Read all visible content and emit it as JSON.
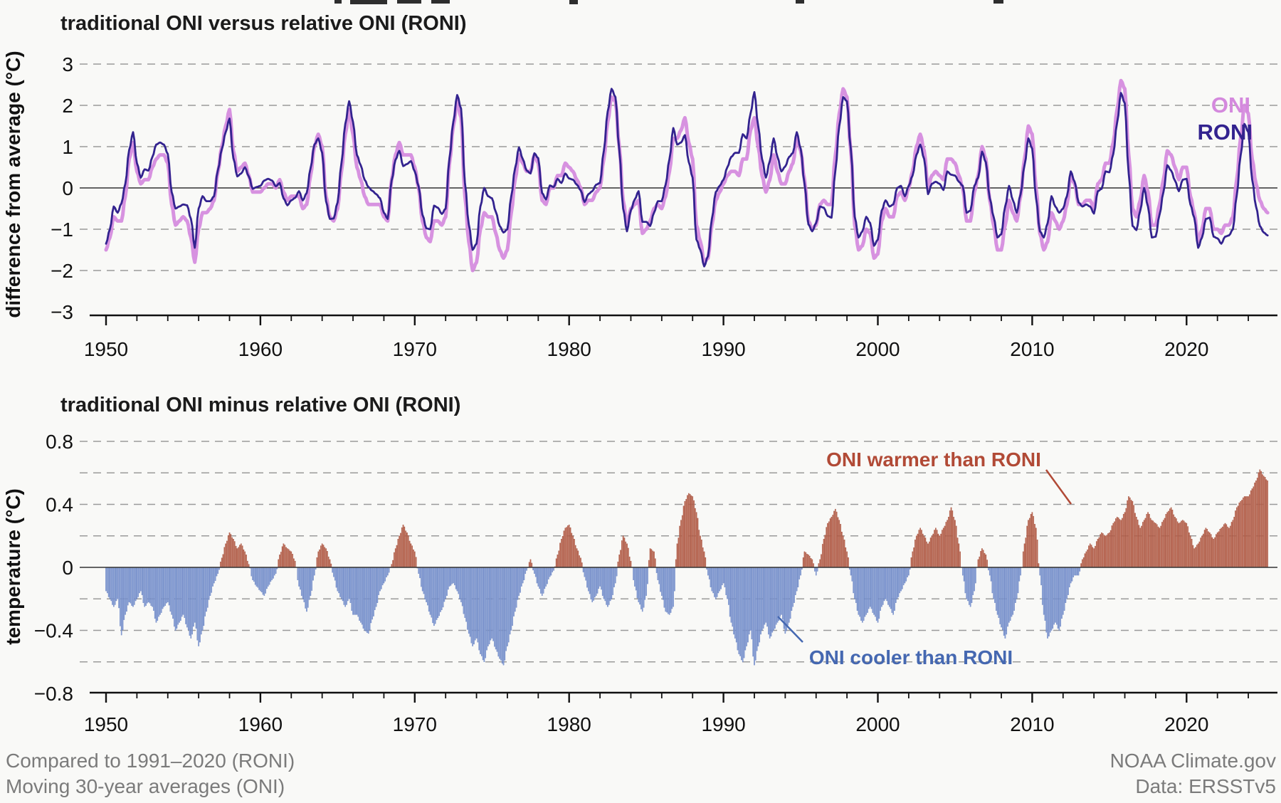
{
  "colors": {
    "oni": "#d489dd",
    "roni": "#33238f",
    "warm_bar": "#c06a53",
    "warm_bar_edge": "#9e4c3a",
    "cool_bar": "#8aa3d8",
    "cool_bar_edge": "#5d77bb",
    "warm_text": "#b14a36",
    "cool_text": "#4568b1",
    "grid": "#9a9a9a",
    "axis": "#111111",
    "zero_line": "#333333",
    "footer_text": "#7b7b7b"
  },
  "footer": {
    "left_line1": "Compared to 1991–2020 (RONI)",
    "left_line2": "Moving 30-year averages (ONI)",
    "right_line1": "NOAA Climate.gov",
    "right_line2": "Data: ERSSTv5"
  },
  "chart_data": [
    {
      "type": "line",
      "title": "traditional ONI versus relative ONI (RONI)",
      "xlabel": "",
      "ylabel": "difference from average (°C)",
      "x_start": 1950.0,
      "x_step_years": 0.25,
      "xlim": [
        1949,
        2026
      ],
      "ylim": [
        -3,
        3
      ],
      "yticks": [
        3,
        2,
        1,
        0,
        -1,
        -2,
        -3
      ],
      "xticks": [
        1950,
        1960,
        1970,
        1980,
        1990,
        2000,
        2010,
        2020
      ],
      "minor_xtick_interval_years": 2,
      "grid": "horizontal dashed",
      "legend_position": "inline upper right",
      "legend": {
        "oni_label": "ONI",
        "roni_label": "RONI"
      },
      "series": [
        {
          "name": "ONI",
          "color": "#d489dd",
          "values": [
            -1.5,
            -1.2,
            -0.7,
            -0.8,
            -0.8,
            -0.2,
            0.7,
            1.1,
            0.4,
            0.1,
            0.2,
            0.2,
            0.5,
            0.7,
            0.8,
            0.8,
            0.6,
            -0.4,
            -0.9,
            -0.8,
            -0.7,
            -0.8,
            -1.2,
            -1.8,
            -1.0,
            -0.6,
            -0.6,
            -0.5,
            -0.3,
            0.4,
            1.0,
            1.5,
            1.9,
            0.9,
            0.4,
            0.5,
            0.6,
            0.3,
            -0.1,
            -0.1,
            -0.1,
            0.0,
            0.1,
            0.1,
            0.0,
            0.2,
            -0.1,
            -0.3,
            -0.2,
            -0.2,
            -0.2,
            -0.5,
            -0.4,
            0.3,
            1.0,
            1.3,
            1.0,
            -0.2,
            -0.7,
            -0.8,
            -0.5,
            0.4,
            1.3,
            1.9,
            1.3,
            0.5,
            0.2,
            -0.2,
            -0.4,
            -0.4,
            -0.4,
            -0.4,
            -0.7,
            -0.8,
            0.2,
            0.8,
            1.1,
            0.8,
            0.8,
            0.8,
            0.5,
            0.0,
            -0.8,
            -1.2,
            -1.3,
            -0.8,
            -0.8,
            -0.9,
            -0.7,
            0.6,
            1.5,
            2.1,
            1.7,
            -0.2,
            -1.3,
            -2.0,
            -1.8,
            -1.0,
            -0.6,
            -0.7,
            -0.7,
            -1.1,
            -1.5,
            -1.7,
            -1.5,
            -0.6,
            0.2,
            0.8,
            0.6,
            0.4,
            0.4,
            0.8,
            0.6,
            -0.3,
            -0.4,
            0.0,
            0.0,
            0.3,
            0.3,
            0.6,
            0.5,
            0.4,
            0.2,
            0.0,
            -0.4,
            -0.3,
            -0.3,
            -0.1,
            0.0,
            0.7,
            1.6,
            2.2,
            2.1,
            1.0,
            -0.3,
            -0.9,
            -0.5,
            -0.4,
            -0.3,
            -1.1,
            -1.0,
            -0.8,
            -0.5,
            -0.4,
            -0.5,
            -0.2,
            0.4,
            1.2,
            1.2,
            1.4,
            1.7,
            1.1,
            0.7,
            -0.9,
            -1.3,
            -1.8,
            -1.7,
            -0.9,
            -0.3,
            -0.1,
            0.1,
            0.3,
            0.4,
            0.4,
            0.3,
            0.7,
            0.7,
            1.4,
            1.7,
            1.0,
            0.3,
            -0.1,
            0.2,
            0.8,
            0.4,
            0.1,
            0.1,
            0.4,
            0.6,
            1.2,
            0.9,
            0.2,
            -0.8,
            -1.0,
            -0.9,
            -0.4,
            -0.3,
            -0.4,
            -0.4,
            0.8,
            1.8,
            2.4,
            2.2,
            0.9,
            -0.9,
            -1.5,
            -1.4,
            -1.0,
            -1.1,
            -1.7,
            -1.6,
            -0.8,
            -0.5,
            -0.7,
            -0.7,
            -0.2,
            -0.1,
            -0.3,
            0.0,
            0.4,
            1.0,
            1.3,
            0.9,
            0.0,
            0.3,
            0.4,
            0.3,
            0.2,
            0.7,
            0.7,
            0.6,
            0.3,
            0.0,
            -0.8,
            -0.8,
            -0.1,
            0.3,
            1.0,
            0.7,
            -0.3,
            -0.9,
            -1.5,
            -1.5,
            -0.9,
            -0.3,
            -0.6,
            -0.8,
            -0.2,
            0.7,
            1.5,
            1.3,
            0.0,
            -1.1,
            -1.5,
            -1.3,
            -0.6,
            -0.8,
            -1.0,
            -0.8,
            -0.4,
            0.3,
            0.1,
            -0.4,
            -0.4,
            -0.3,
            -0.3,
            -0.5,
            0.1,
            0.2,
            0.6,
            0.6,
            1.1,
            1.9,
            2.6,
            2.4,
            0.8,
            -0.5,
            -0.7,
            -0.3,
            0.3,
            -0.1,
            -0.9,
            -0.9,
            -0.4,
            0.2,
            0.9,
            0.8,
            0.5,
            0.2,
            0.5,
            0.5,
            -0.2,
            -0.6,
            -1.3,
            -1.0,
            -0.5,
            -0.5,
            -1.0,
            -1.0,
            -1.1,
            -0.9,
            -0.9,
            -0.7,
            0.2,
            1.2,
            2.0,
            1.8,
            0.7,
            0.1,
            -0.3,
            -0.5,
            -0.6
          ]
        },
        {
          "name": "RONI",
          "color": "#33238f",
          "derivation": "RONI[i] = ONI[i] minus diff[i], where diff is the 'traditional ONI minus relative ONI' series of the bottom bar chart"
        }
      ]
    },
    {
      "type": "bar",
      "title": "traditional ONI minus relative ONI (RONI)",
      "xlabel": "",
      "ylabel": "temperature (°C)",
      "x_start": 1950.0,
      "x_step_years": 0.25,
      "xlim": [
        1949,
        2026
      ],
      "ylim": [
        -0.8,
        0.8
      ],
      "yticks": [
        0.8,
        0.4,
        0,
        -0.4,
        -0.8
      ],
      "minor_ytick_interval": 0.2,
      "xticks": [
        1950,
        1960,
        1970,
        1980,
        1990,
        2000,
        2010,
        2020
      ],
      "minor_xtick_interval_years": 2,
      "grid": "horizontal dashed",
      "positive_color": "#c06a53",
      "negative_color": "#8aa3d8",
      "annotations": {
        "positive_label": "ONI warmer than RONI",
        "negative_label": "ONI cooler than RONI"
      },
      "values": [
        -0.15,
        -0.2,
        -0.25,
        -0.2,
        -0.43,
        -0.3,
        -0.22,
        -0.25,
        -0.2,
        -0.15,
        -0.25,
        -0.22,
        -0.25,
        -0.35,
        -0.3,
        -0.25,
        -0.22,
        -0.3,
        -0.4,
        -0.35,
        -0.3,
        -0.38,
        -0.45,
        -0.35,
        -0.5,
        -0.4,
        -0.28,
        -0.18,
        -0.1,
        -0.04,
        0.06,
        0.15,
        0.22,
        0.18,
        0.12,
        0.15,
        0.1,
        0.02,
        -0.08,
        -0.12,
        -0.15,
        -0.18,
        -0.12,
        -0.08,
        -0.04,
        0.08,
        0.15,
        0.12,
        0.1,
        0.04,
        -0.12,
        -0.2,
        -0.28,
        -0.18,
        -0.05,
        0.1,
        0.15,
        0.12,
        0.05,
        -0.06,
        -0.15,
        -0.2,
        -0.25,
        -0.2,
        -0.3,
        -0.3,
        -0.35,
        -0.4,
        -0.42,
        -0.33,
        -0.25,
        -0.15,
        -0.1,
        -0.05,
        0.02,
        0.12,
        0.2,
        0.27,
        0.22,
        0.15,
        0.1,
        -0.04,
        -0.15,
        -0.22,
        -0.3,
        -0.37,
        -0.32,
        -0.27,
        -0.2,
        -0.12,
        -0.1,
        -0.15,
        -0.22,
        -0.32,
        -0.42,
        -0.5,
        -0.45,
        -0.55,
        -0.6,
        -0.5,
        -0.45,
        -0.52,
        -0.58,
        -0.62,
        -0.5,
        -0.4,
        -0.28,
        -0.18,
        -0.1,
        -0.02,
        0.05,
        -0.04,
        -0.12,
        -0.18,
        -0.12,
        -0.06,
        -0.02,
        0.08,
        0.18,
        0.25,
        0.27,
        0.2,
        0.12,
        0.06,
        -0.06,
        -0.15,
        -0.22,
        -0.18,
        -0.12,
        -0.2,
        -0.25,
        -0.2,
        -0.1,
        0.08,
        0.2,
        0.15,
        0.04,
        -0.12,
        -0.22,
        -0.28,
        -0.18,
        0.12,
        0.1,
        -0.08,
        -0.18,
        -0.28,
        -0.3,
        -0.25,
        0.15,
        0.3,
        0.42,
        0.47,
        0.45,
        0.35,
        0.2,
        0.1,
        -0.05,
        -0.15,
        -0.2,
        -0.15,
        -0.1,
        -0.2,
        -0.35,
        -0.45,
        -0.55,
        -0.6,
        -0.5,
        -0.4,
        -0.62,
        -0.5,
        -0.4,
        -0.35,
        -0.45,
        -0.4,
        -0.35,
        -0.3,
        -0.42,
        -0.35,
        -0.25,
        -0.15,
        -0.05,
        0.1,
        0.08,
        0.05,
        -0.05,
        0.05,
        0.18,
        0.28,
        0.32,
        0.37,
        0.3,
        0.2,
        0.1,
        -0.05,
        -0.2,
        -0.3,
        -0.35,
        -0.3,
        -0.25,
        -0.3,
        -0.35,
        -0.25,
        -0.2,
        -0.25,
        -0.3,
        -0.2,
        -0.15,
        -0.1,
        -0.05,
        0.1,
        0.2,
        0.25,
        0.2,
        0.15,
        0.2,
        0.25,
        0.2,
        0.25,
        0.3,
        0.38,
        0.3,
        0.15,
        -0.05,
        -0.2,
        -0.25,
        -0.15,
        0.05,
        0.12,
        0.08,
        -0.05,
        -0.2,
        -0.3,
        -0.38,
        -0.45,
        -0.35,
        -0.3,
        -0.2,
        -0.05,
        0.15,
        0.3,
        0.35,
        0.25,
        -0.05,
        -0.3,
        -0.45,
        -0.4,
        -0.35,
        -0.4,
        -0.3,
        -0.2,
        -0.1,
        -0.05,
        -0.05,
        0.05,
        0.1,
        0.15,
        0.12,
        0.18,
        0.22,
        0.2,
        0.22,
        0.28,
        0.32,
        0.3,
        0.35,
        0.45,
        0.42,
        0.32,
        0.25,
        0.3,
        0.35,
        0.3,
        0.28,
        0.25,
        0.3,
        0.35,
        0.38,
        0.32,
        0.28,
        0.3,
        0.28,
        0.2,
        0.12,
        0.15,
        0.2,
        0.25,
        0.22,
        0.18,
        0.22,
        0.25,
        0.28,
        0.25,
        0.3,
        0.38,
        0.42,
        0.45,
        0.45,
        0.5,
        0.55,
        0.62,
        0.58,
        0.55
      ]
    }
  ]
}
